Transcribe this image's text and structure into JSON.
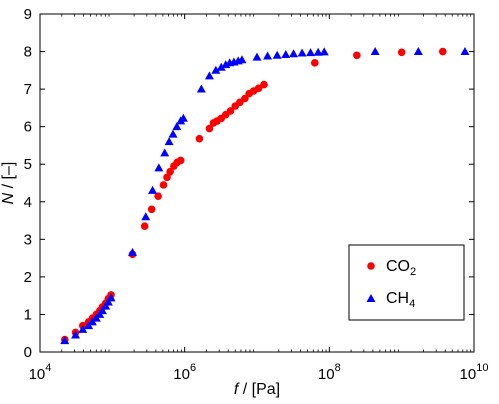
{
  "chart_data": {
    "type": "scatter",
    "x_scale": "log",
    "xlim": [
      10000,
      10000000000
    ],
    "ylim": [
      0,
      9
    ],
    "xticks": [
      {
        "base": "10",
        "exp": "4"
      },
      {
        "base": "10",
        "exp": "6"
      },
      {
        "base": "10",
        "exp": "8"
      },
      {
        "base": "10",
        "exp": "10"
      }
    ],
    "xtick_values": [
      10000,
      1000000,
      100000000,
      10000000000
    ],
    "yticks": [
      "0",
      "1",
      "2",
      "3",
      "4",
      "5",
      "6",
      "7",
      "8",
      "9"
    ],
    "xlabel": {
      "var": "f",
      "unit": " / [Pa]"
    },
    "ylabel": {
      "var": "N",
      "unit": " / [–]"
    },
    "grid": false,
    "legend_position": "bottom-right",
    "series": [
      {
        "name": "CO",
        "name_sub": "2",
        "marker": "circle",
        "color": "#ff0000",
        "x": [
          22000,
          31000,
          39000,
          47000,
          53000,
          60000,
          67000,
          73000,
          81000,
          88000,
          96000,
          190000,
          280000,
          350000,
          430000,
          510000,
          570000,
          630000,
          710000,
          790000,
          880000,
          1600000,
          2200000,
          2500000,
          2800000,
          3200000,
          3700000,
          4300000,
          5000000,
          5800000,
          6800000,
          7800000,
          9000000,
          10500000,
          12500000,
          63000000,
          240000000,
          1000000000,
          3700000000
        ],
        "y": [
          0.33,
          0.52,
          0.7,
          0.8,
          0.9,
          1.0,
          1.1,
          1.2,
          1.3,
          1.42,
          1.52,
          2.6,
          3.35,
          3.8,
          4.15,
          4.45,
          4.65,
          4.8,
          4.95,
          5.05,
          5.1,
          5.68,
          5.95,
          6.1,
          6.15,
          6.22,
          6.32,
          6.42,
          6.55,
          6.65,
          6.75,
          6.88,
          6.95,
          7.02,
          7.12,
          7.7,
          7.9,
          7.98,
          8.0
        ]
      },
      {
        "name": "CH",
        "name_sub": "4",
        "marker": "triangle",
        "color": "#0000ff",
        "x": [
          22000,
          31000,
          39000,
          47000,
          53000,
          60000,
          67000,
          73000,
          81000,
          88000,
          96000,
          190000,
          290000,
          360000,
          440000,
          530000,
          610000,
          690000,
          780000,
          880000,
          960000,
          1700000,
          2200000,
          2700000,
          3200000,
          3700000,
          4200000,
          4800000,
          5500000,
          6200000,
          10000000,
          14000000,
          19000000,
          25000000,
          32000000,
          42000000,
          55000000,
          70000000,
          85000000,
          430000000,
          1700000000,
          7500000000
        ],
        "y": [
          0.3,
          0.45,
          0.6,
          0.7,
          0.8,
          0.9,
          1.0,
          1.1,
          1.22,
          1.33,
          1.44,
          2.65,
          3.6,
          4.3,
          4.9,
          5.3,
          5.6,
          5.8,
          6.0,
          6.15,
          6.22,
          7.0,
          7.35,
          7.5,
          7.58,
          7.65,
          7.7,
          7.72,
          7.75,
          7.78,
          7.85,
          7.88,
          7.9,
          7.92,
          7.94,
          7.96,
          7.97,
          7.98,
          7.99,
          8.0,
          8.0,
          8.0
        ]
      }
    ]
  }
}
